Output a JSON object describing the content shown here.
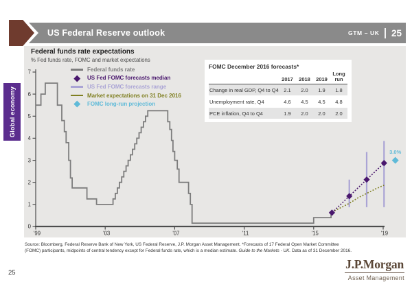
{
  "header": {
    "title": "US Federal Reserve outlook",
    "gtm_label": "GTM – UK",
    "page": "25"
  },
  "sidebar": {
    "label": "Global economy"
  },
  "chart": {
    "title": "Federal funds rate expectations",
    "subtitle": "% Fed funds rate, FOMC and market expectations"
  },
  "legend": {
    "items": [
      {
        "label": "Federal funds rate",
        "marker": "line",
        "color": "#7d7d7d"
      },
      {
        "label": "US Fed FOMC forecasts median",
        "marker": "diamond",
        "color": "#49176d"
      },
      {
        "label": "US Fed FOMC forecasts range",
        "marker": "line",
        "color": "#aaa4d5"
      },
      {
        "label": "Market expectations on 31 Dec 2016",
        "marker": "line",
        "color": "#7f7f21"
      },
      {
        "label": "FOMC long-run projection",
        "marker": "diamond",
        "color": "#5fbad8"
      }
    ]
  },
  "table": {
    "title": "FOMC December 2016 forecasts*",
    "columns": [
      "2017",
      "2018",
      "2019",
      "Long run"
    ],
    "rows": [
      {
        "label": "Change in real GDP, Q4 to Q4",
        "values": [
          "2.1",
          "2.0",
          "1.9",
          "1.8"
        ]
      },
      {
        "label": "Unemployment rate, Q4",
        "values": [
          "4.6",
          "4.5",
          "4.5",
          "4.8"
        ]
      },
      {
        "label": "PCE inflation, Q4 to Q4",
        "values": [
          "1.9",
          "2.0",
          "2.0",
          "2.0"
        ]
      }
    ]
  },
  "chart_data": {
    "type": "line",
    "title": "Federal funds rate expectations",
    "xlabel": "",
    "ylabel": "% Fed funds rate",
    "ylim": [
      0,
      7
    ],
    "xlim": [
      1999,
      2020.5
    ],
    "grid": false,
    "x_ticks": {
      "years": [
        1999,
        2003,
        2007,
        2011,
        2015,
        2019
      ],
      "labels": [
        "'99",
        "'03",
        "'07",
        "'11",
        "'15",
        "'19"
      ]
    },
    "y_ticks": [
      0,
      1,
      2,
      3,
      4,
      5,
      6,
      7
    ],
    "series": [
      {
        "name": "Federal funds rate",
        "style": "step",
        "color": "#7d7d7d",
        "points": [
          [
            1999.0,
            5.5
          ],
          [
            1999.3,
            6.0
          ],
          [
            1999.55,
            6.5
          ],
          [
            2000.25,
            5.5
          ],
          [
            2000.5,
            4.8
          ],
          [
            2000.65,
            4.3
          ],
          [
            2000.75,
            3.8
          ],
          [
            2000.9,
            3.0
          ],
          [
            2001.0,
            2.2
          ],
          [
            2001.1,
            1.75
          ],
          [
            2001.95,
            1.25
          ],
          [
            2002.5,
            1.0
          ],
          [
            2003.45,
            1.25
          ],
          [
            2003.58,
            1.5
          ],
          [
            2003.7,
            1.75
          ],
          [
            2003.82,
            2.0
          ],
          [
            2003.95,
            2.25
          ],
          [
            2004.07,
            2.5
          ],
          [
            2004.2,
            2.75
          ],
          [
            2004.32,
            3.0
          ],
          [
            2004.45,
            3.25
          ],
          [
            2004.57,
            3.5
          ],
          [
            2004.7,
            3.75
          ],
          [
            2004.82,
            4.0
          ],
          [
            2004.95,
            4.25
          ],
          [
            2005.07,
            4.5
          ],
          [
            2005.2,
            4.75
          ],
          [
            2005.32,
            5.0
          ],
          [
            2005.45,
            5.25
          ],
          [
            2006.6,
            4.75
          ],
          [
            2006.72,
            4.4
          ],
          [
            2006.82,
            3.9
          ],
          [
            2006.9,
            3.4
          ],
          [
            2007.0,
            3.0
          ],
          [
            2007.15,
            2.6
          ],
          [
            2007.25,
            2.0
          ],
          [
            2007.8,
            1.5
          ],
          [
            2007.9,
            1.0
          ],
          [
            2008.0,
            0.15
          ],
          [
            2015.0,
            0.4
          ],
          [
            2016.0,
            0.625
          ]
        ],
        "end_x": 2016.08
      },
      {
        "name": "US Fed FOMC forecasts range",
        "style": "vertical-range",
        "color": "#aaa4d5",
        "points": [
          [
            2017.05,
            0.875,
            2.125
          ],
          [
            2018.05,
            0.875,
            3.375
          ],
          [
            2019.05,
            0.875,
            3.875
          ]
        ]
      },
      {
        "name": "Market expectations on 31 Dec 2016",
        "style": "dotted",
        "color": "#7f7f21",
        "points": [
          [
            2016.05,
            0.65
          ],
          [
            2016.55,
            0.85
          ],
          [
            2017.05,
            1.05
          ],
          [
            2017.55,
            1.3
          ],
          [
            2018.05,
            1.5
          ],
          [
            2018.55,
            1.7
          ],
          [
            2019.05,
            1.87
          ]
        ]
      },
      {
        "name": "US Fed FOMC forecasts median",
        "style": "dotted-diamond",
        "color": "#49176d",
        "points": [
          [
            2016.05,
            0.625
          ],
          [
            2017.05,
            1.375
          ],
          [
            2018.05,
            2.125
          ],
          [
            2019.05,
            2.875
          ]
        ]
      },
      {
        "name": "FOMC long-run projection",
        "style": "diamond",
        "color": "#5fbad8",
        "points": [
          [
            2019.7,
            3.0
          ]
        ],
        "label": "3.0%"
      }
    ]
  },
  "footer": {
    "source_line1": "Source: Bloomberg, Federal Reserve Bank of New York, US Federal Reserve, J.P. Morgan Asset Management. *Forecasts of 17 Federal Open Market Committee",
    "source_line2_pre": "(FOMC) participants, midpoints of central tendency except for Federal funds rate, which is a median estimate. ",
    "source_italic": "Guide to the Markets - UK.",
    "source_line2_post": " Data as of 31 December 2016.",
    "page_number": "25"
  },
  "logo": {
    "name": "J.P.Morgan",
    "sub": "Asset Management"
  },
  "colors": {
    "header_bar": "#8a8a8a",
    "header_arrow": "#6f3b2e",
    "panel_bg": "#e8e7e5",
    "side_tab": "#5b2d8e",
    "axis": "#4d4d4d",
    "fed_line": "#7d7d7d",
    "median_purple": "#49176d",
    "range_lavender": "#aaa4d5",
    "market_olive": "#7f7f21",
    "longrun_teal": "#5fbad8",
    "table_alt_row": "#e4e4e4"
  }
}
